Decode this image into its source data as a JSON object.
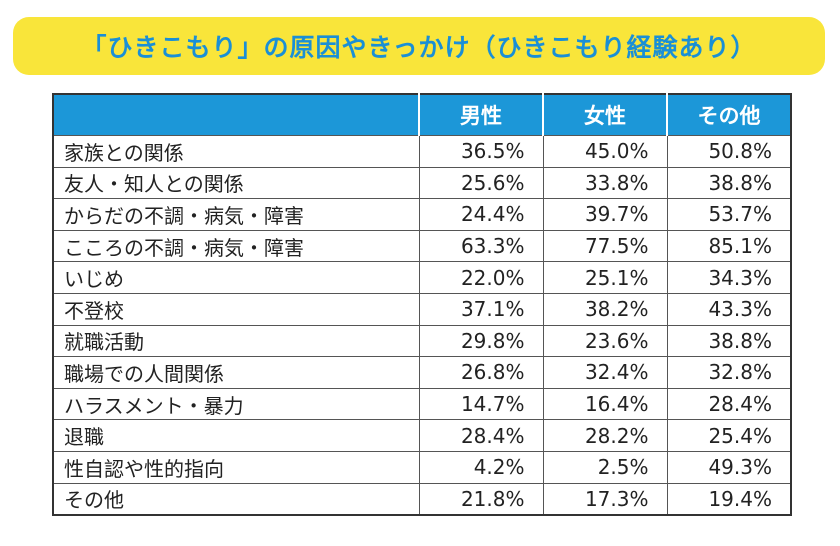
{
  "title": "「ひきこもり」の原因やきっかけ（ひきこもり経験あり）",
  "colors": {
    "banner_bg": "#f9e53a",
    "title_text": "#1a8fd6",
    "header_bg": "#1c97d8",
    "header_text": "#ffffff"
  },
  "chart_data": {
    "type": "table",
    "title": "「ひきこもり」の原因やきっかけ（ひきこもり経験あり）",
    "columns": [
      "",
      "男性",
      "女性",
      "その他"
    ],
    "rows": [
      {
        "label": "家族との関係",
        "values": [
          "36.5%",
          "45.0%",
          "50.8%"
        ]
      },
      {
        "label": "友人・知人との関係",
        "values": [
          "25.6%",
          "33.8%",
          "38.8%"
        ]
      },
      {
        "label": "からだの不調・病気・障害",
        "values": [
          "24.4%",
          "39.7%",
          "53.7%"
        ]
      },
      {
        "label": "こころの不調・病気・障害",
        "values": [
          "63.3%",
          "77.5%",
          "85.1%"
        ]
      },
      {
        "label": "いじめ",
        "values": [
          "22.0%",
          "25.1%",
          "34.3%"
        ]
      },
      {
        "label": "不登校",
        "values": [
          "37.1%",
          "38.2%",
          "43.3%"
        ]
      },
      {
        "label": "就職活動",
        "values": [
          "29.8%",
          "23.6%",
          "38.8%"
        ]
      },
      {
        "label": "職場での人間関係",
        "values": [
          "26.8%",
          "32.4%",
          "32.8%"
        ]
      },
      {
        "label": "ハラスメント・暴力",
        "values": [
          "14.7%",
          "16.4%",
          "28.4%"
        ]
      },
      {
        "label": "退職",
        "values": [
          "28.4%",
          "28.2%",
          "25.4%"
        ]
      },
      {
        "label": "性自認や性的指向",
        "values": [
          "4.2%",
          "2.5%",
          "49.3%"
        ]
      },
      {
        "label": "その他",
        "values": [
          "21.8%",
          "17.3%",
          "19.4%"
        ]
      }
    ]
  }
}
